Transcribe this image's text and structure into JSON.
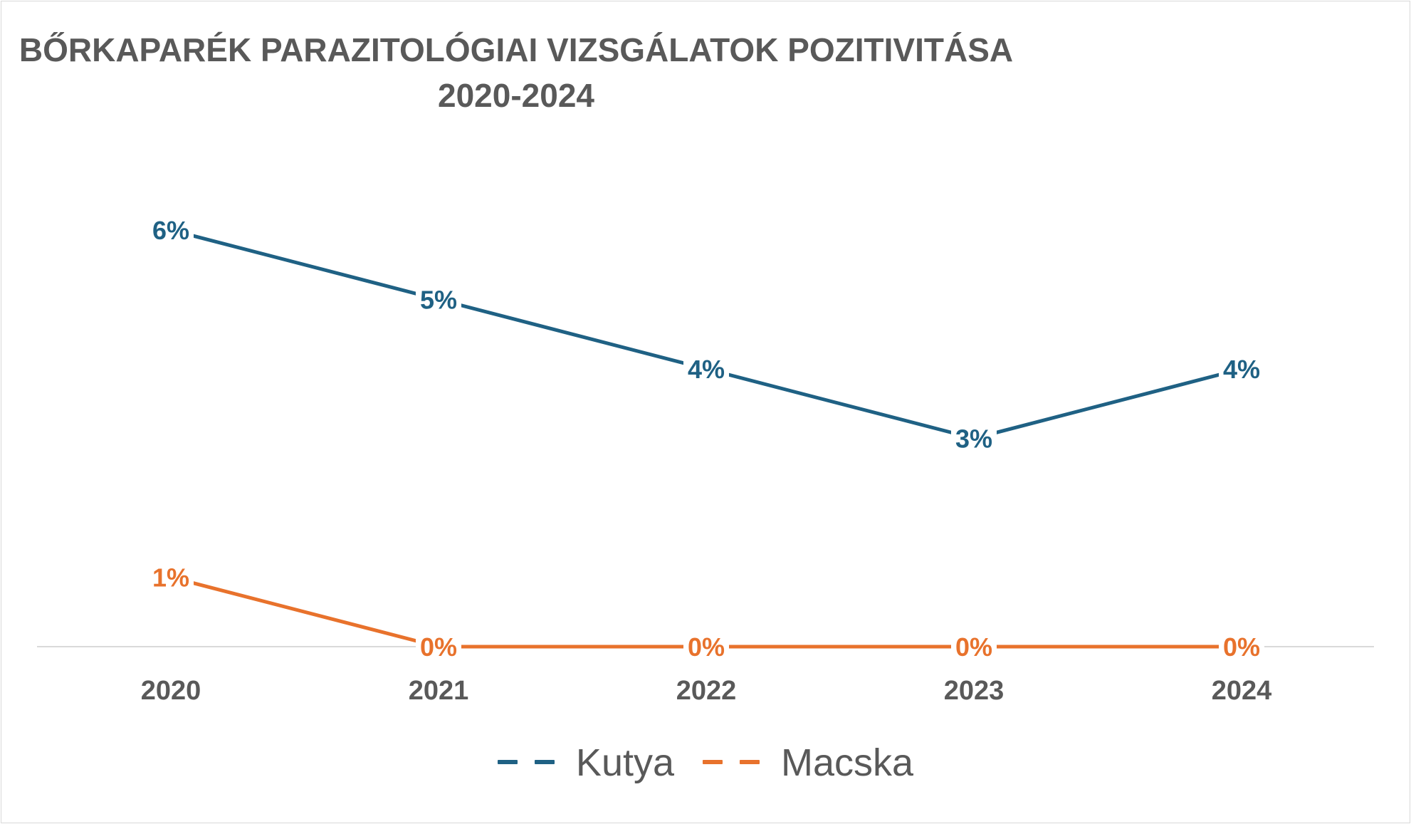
{
  "chart_data": {
    "type": "line",
    "title_lines": [
      "BŐRKAPARÉK PARAZITOLÓGIAI VIZSGÁLATOK POZITIVITÁSA",
      "2020-2024"
    ],
    "categories": [
      "2020",
      "2021",
      "2022",
      "2023",
      "2024"
    ],
    "series": [
      {
        "name": "Kutya",
        "values": [
          6,
          5,
          4,
          3,
          4
        ],
        "labels": [
          "6%",
          "5%",
          "4%",
          "3%",
          "4%"
        ],
        "color": "#1f6184"
      },
      {
        "name": "Macska",
        "values": [
          1,
          0,
          0,
          0,
          0
        ],
        "labels": [
          "1%",
          "0%",
          "0%",
          "0%",
          "0%"
        ],
        "color": "#e8722c"
      }
    ],
    "ylim": [
      0,
      6
    ],
    "grid": false,
    "legend_position": "bottom",
    "axis_color": "#d9d9d9",
    "text_color": "#595959"
  }
}
